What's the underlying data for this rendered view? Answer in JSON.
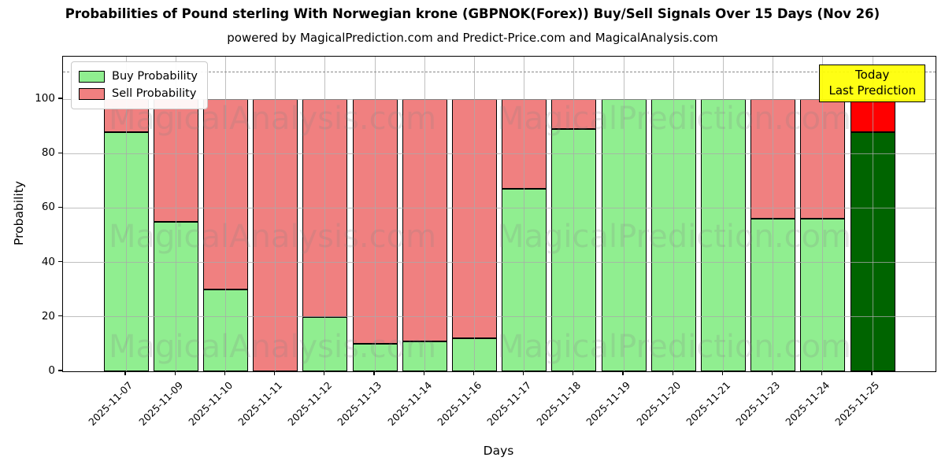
{
  "title": "Probabilities of Pound sterling With Norwegian krone (GBPNOK(Forex)) Buy/Sell Signals Over 15 Days (Nov 26)",
  "subtitle": "powered by MagicalPrediction.com and Predict-Price.com and MagicalAnalysis.com",
  "axes": {
    "xlabel": "Days",
    "ylabel": "Probability",
    "yticks": [
      0,
      20,
      40,
      60,
      80,
      100
    ],
    "dashed_guide_y": 110,
    "grid": true
  },
  "legend": {
    "position": "top-left",
    "items": [
      {
        "label": "Buy Probability",
        "color": "#90ee90"
      },
      {
        "label": "Sell Probability",
        "color": "#f08080"
      }
    ]
  },
  "annotation_box": {
    "lines": [
      "Today",
      "Last Prediction"
    ],
    "bg_color": "#ffff00"
  },
  "watermarks": {
    "left_text": "MagicalAnalysis.com",
    "right_text": "MagicalPrediction.com"
  },
  "chart_data": {
    "type": "bar",
    "stacked": true,
    "title": "Probabilities of Pound sterling With Norwegian krone (GBPNOK(Forex)) Buy/Sell Signals Over 15 Days (Nov 26)",
    "xlabel": "Days",
    "ylabel": "Probability",
    "ylim": [
      0,
      115.6
    ],
    "categories": [
      "2025-11-07",
      "2025-11-09",
      "2025-11-10",
      "2025-11-11",
      "2025-11-12",
      "2025-11-13",
      "2025-11-14",
      "2025-11-16",
      "2025-11-17",
      "2025-11-18",
      "2025-11-19",
      "2025-11-20",
      "2025-11-21",
      "2025-11-23",
      "2025-11-24",
      "2025-11-25"
    ],
    "series": [
      {
        "name": "Buy Probability",
        "color": "#90ee90",
        "values": [
          88,
          55,
          30,
          0,
          20,
          10,
          11,
          12,
          67,
          89,
          100,
          100,
          100,
          56,
          56,
          88
        ]
      },
      {
        "name": "Sell Probability",
        "color": "#f08080",
        "values": [
          12,
          45,
          70,
          100,
          80,
          90,
          89,
          88,
          33,
          11,
          0,
          0,
          0,
          44,
          44,
          12
        ]
      }
    ],
    "today": {
      "index": 15,
      "buy_color": "#006400",
      "sell_color": "#ff0000"
    },
    "bar_edge_color": "#000000"
  }
}
